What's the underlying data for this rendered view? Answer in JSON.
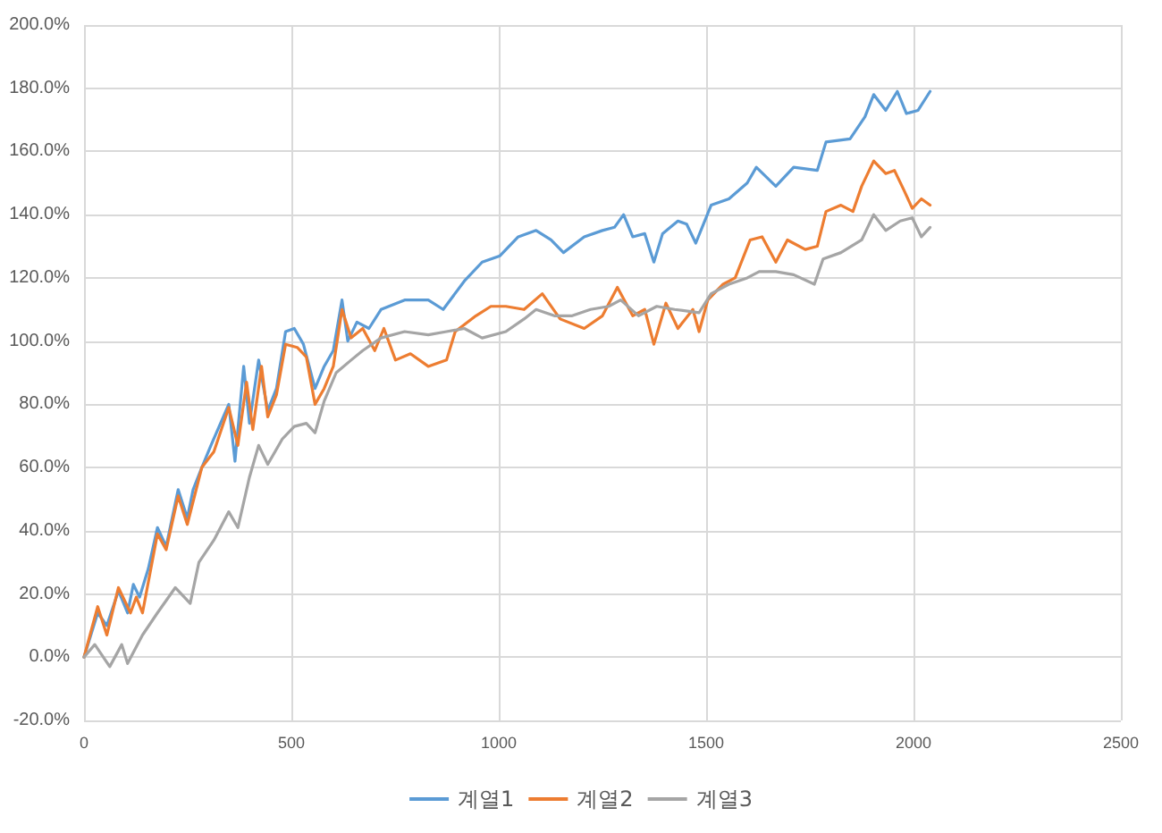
{
  "chart_data": {
    "type": "line",
    "xlim": [
      0,
      2500
    ],
    "xticks": [
      0,
      500,
      1000,
      1500,
      2000,
      2500
    ],
    "ylim": [
      -20,
      200
    ],
    "yticks": [
      {
        "value": -20,
        "label": "-20.0%"
      },
      {
        "value": 0,
        "label": "0.0%"
      },
      {
        "value": 20,
        "label": "20.0%"
      },
      {
        "value": 40,
        "label": "40.0%"
      },
      {
        "value": 60,
        "label": "60.0%"
      },
      {
        "value": 80,
        "label": "80.0%"
      },
      {
        "value": 100,
        "label": "100.0%"
      },
      {
        "value": 120,
        "label": "120.0%"
      },
      {
        "value": 140,
        "label": "140.0%"
      },
      {
        "value": 160,
        "label": "160.0%"
      },
      {
        "value": 180,
        "label": "180.0%"
      },
      {
        "value": 200,
        "label": "200.0%"
      }
    ],
    "grid": true,
    "legend": "bottom",
    "marker": "none",
    "line_style": "solid",
    "series": [
      {
        "name": "계열1",
        "color": "#5b9bd5",
        "x": [
          0,
          33,
          55,
          83,
          105,
          119,
          134,
          155,
          177,
          198,
          227,
          249,
          263,
          284,
          306,
          349,
          364,
          385,
          399,
          421,
          443,
          464,
          486,
          507,
          529,
          557,
          579,
          601,
          622,
          636,
          658,
          687,
          716,
          773,
          830,
          866,
          917,
          960,
          1003,
          1047,
          1090,
          1126,
          1156,
          1206,
          1250,
          1279,
          1301,
          1323,
          1352,
          1374,
          1395,
          1432,
          1453,
          1475,
          1512,
          1555,
          1599,
          1621,
          1668,
          1711,
          1768,
          1789,
          1847,
          1883,
          1904,
          1933,
          1961,
          1983,
          2011,
          2040
        ],
        "values": [
          0,
          14,
          10,
          21,
          14,
          23,
          19,
          28,
          41,
          35,
          53,
          44,
          53,
          60,
          67,
          80,
          62,
          92,
          74,
          94,
          78,
          85,
          103,
          104,
          99,
          85,
          92,
          97,
          113,
          100,
          106,
          104,
          110,
          113,
          113,
          110,
          119,
          125,
          127,
          133,
          135,
          132,
          128,
          133,
          135,
          136,
          140,
          133,
          134,
          125,
          134,
          138,
          137,
          131,
          143,
          145,
          150,
          155,
          149,
          155,
          154,
          163,
          164,
          171,
          178,
          173,
          179,
          172,
          173,
          179
        ]
      },
      {
        "name": "계열2",
        "color": "#ed7d31",
        "x": [
          0,
          33,
          55,
          83,
          112,
          126,
          141,
          177,
          198,
          227,
          249,
          284,
          313,
          349,
          371,
          392,
          407,
          428,
          443,
          464,
          486,
          514,
          536,
          557,
          579,
          601,
          622,
          644,
          672,
          701,
          723,
          751,
          787,
          830,
          874,
          895,
          945,
          981,
          1017,
          1061,
          1105,
          1148,
          1206,
          1250,
          1286,
          1323,
          1352,
          1374,
          1403,
          1432,
          1468,
          1483,
          1504,
          1541,
          1570,
          1606,
          1635,
          1668,
          1696,
          1739,
          1768,
          1789,
          1825,
          1854,
          1875,
          1904,
          1933,
          1954,
          1976,
          1997,
          2019,
          2040
        ],
        "values": [
          0,
          16,
          7,
          22,
          14,
          19,
          14,
          39,
          34,
          51,
          42,
          60,
          65,
          79,
          67,
          87,
          72,
          92,
          76,
          83,
          99,
          98,
          95,
          80,
          85,
          92,
          110,
          101,
          104,
          97,
          104,
          94,
          96,
          92,
          94,
          103,
          108,
          111,
          111,
          110,
          115,
          107,
          104,
          108,
          117,
          108,
          110,
          99,
          112,
          104,
          110,
          103,
          113,
          118,
          120,
          132,
          133,
          125,
          132,
          129,
          130,
          141,
          143,
          141,
          149,
          157,
          153,
          154,
          148,
          142,
          145,
          143
        ]
      },
      {
        "name": "계열3",
        "color": "#a5a5a5",
        "x": [
          0,
          26,
          62,
          91,
          105,
          141,
          177,
          220,
          256,
          277,
          313,
          349,
          371,
          399,
          421,
          443,
          478,
          507,
          536,
          557,
          579,
          608,
          644,
          672,
          716,
          773,
          830,
          874,
          917,
          960,
          1017,
          1061,
          1090,
          1134,
          1177,
          1221,
          1265,
          1294,
          1337,
          1381,
          1424,
          1483,
          1512,
          1555,
          1599,
          1628,
          1668,
          1711,
          1761,
          1782,
          1825,
          1875,
          1904,
          1933,
          1968,
          1997,
          2019,
          2040
        ],
        "values": [
          0,
          4,
          -3,
          4,
          -2,
          7,
          14,
          22,
          17,
          30,
          37,
          46,
          41,
          57,
          67,
          61,
          69,
          73,
          74,
          71,
          81,
          90,
          94,
          97,
          101,
          103,
          102,
          103,
          104,
          101,
          103,
          107,
          110,
          108,
          108,
          110,
          111,
          113,
          108,
          111,
          110,
          109,
          115,
          118,
          120,
          122,
          122,
          121,
          118,
          126,
          128,
          132,
          140,
          135,
          138,
          139,
          133,
          136
        ]
      }
    ]
  }
}
